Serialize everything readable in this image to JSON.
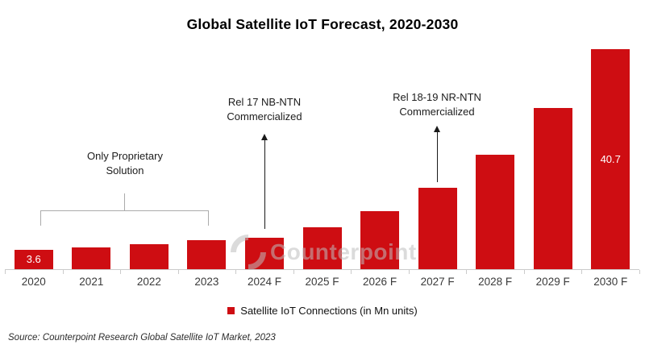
{
  "title": "Global Satellite IoT Forecast, 2020-2030",
  "chart_data": {
    "type": "bar",
    "title": "Global Satellite IoT Forecast, 2020-2030",
    "categories": [
      "2020",
      "2021",
      "2022",
      "2023",
      "2024 F",
      "2025 F",
      "2026 F",
      "2027 F",
      "2028 F",
      "2029 F",
      "2030 F"
    ],
    "values": [
      3.6,
      4.1,
      4.6,
      5.3,
      5.8,
      7.7,
      10.7,
      15.0,
      21.1,
      29.8,
      40.7
    ],
    "value_labels": [
      "3.6",
      "",
      "",
      "",
      "",
      "",
      "",
      "",
      "",
      "",
      "40.7"
    ],
    "labeled_points": {
      "2020": 3.6,
      "2030 F": 40.7
    },
    "series_name": "Satellite IoT Connections (in Mn units)",
    "bar_color": "#CE0D12",
    "value_label_color": "#FFFFFF",
    "xlabel": "",
    "ylabel": "",
    "ylim": [
      0,
      42
    ],
    "grid": false,
    "y_axis_shown": false,
    "legend_position": "bottom"
  },
  "annotations": {
    "proprietary": {
      "line1": "Only Proprietary",
      "line2": "Solution",
      "target": "2020-2023",
      "style": "bracket"
    },
    "rel17": {
      "line1": "Rel 17 NB-NTN",
      "line2": "Commercialized",
      "target": "2024 F",
      "style": "up-arrow"
    },
    "rel18_19": {
      "line1": "Rel 18-19 NR-NTN",
      "line2": "Commercialized",
      "target": "2027 F",
      "style": "up-arrow"
    }
  },
  "legend": {
    "label": "Satellite IoT Connections (in Mn units)",
    "marker_color": "#CE0D12"
  },
  "source": "Source: Counterpoint Research Global Satellite IoT Market, 2023",
  "watermark": {
    "text": "Counterpoint"
  }
}
